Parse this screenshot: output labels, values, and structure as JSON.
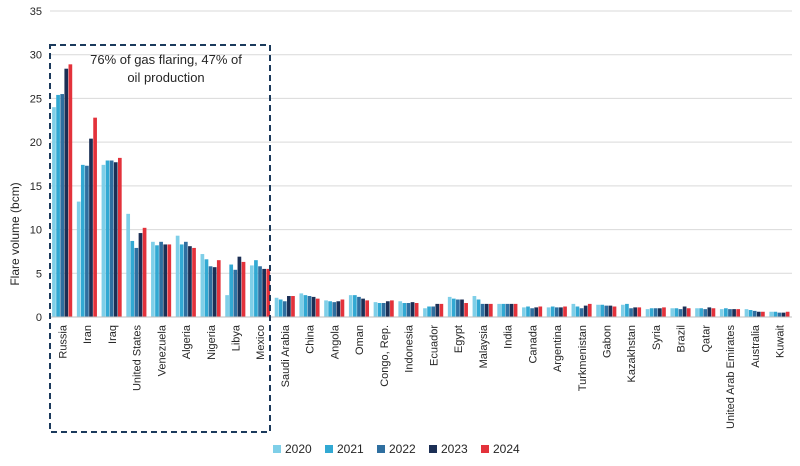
{
  "colors": {
    "2020": "#7fcfe8",
    "2021": "#32a9d3",
    "2022": "#2f6fa0",
    "2023": "#1b2f55",
    "2024": "#e3323b",
    "gridline": "#d9d9d9",
    "highlight_box": "#1b3a5c"
  },
  "chart_data": {
    "type": "bar",
    "ylabel": "Flare volume (bcm)",
    "ylim": [
      0,
      35
    ],
    "yticks": [
      0,
      5,
      10,
      15,
      20,
      25,
      30,
      35
    ],
    "grid": true,
    "legend_position": "bottom",
    "categories": [
      "Russia",
      "Iran",
      "Iraq",
      "United States",
      "Venezuela",
      "Algeria",
      "Nigeria",
      "Libya",
      "Mexico",
      "Saudi Arabia",
      "China",
      "Angola",
      "Oman",
      "Congo, Rep.",
      "Indonesia",
      "Ecuador",
      "Egypt",
      "Malaysia",
      "India",
      "Canada",
      "Argentina",
      "Turkmenistan",
      "Gabon",
      "Kazakhstan",
      "Syria",
      "Brazil",
      "Qatar",
      "United Arab Emirates",
      "Australia",
      "Kuwait"
    ],
    "series": [
      {
        "name": "2020",
        "values": [
          24.0,
          13.2,
          17.4,
          11.8,
          8.6,
          9.3,
          7.2,
          2.5,
          5.9,
          2.2,
          2.7,
          1.9,
          2.5,
          1.7,
          1.8,
          1.0,
          2.3,
          2.4,
          1.5,
          1.1,
          1.1,
          1.5,
          1.4,
          1.4,
          0.9,
          1.0,
          1.0,
          0.9,
          0.9,
          0.6
        ]
      },
      {
        "name": "2021",
        "values": [
          25.4,
          17.4,
          17.9,
          8.7,
          8.2,
          8.3,
          6.6,
          6.0,
          6.5,
          2.0,
          2.5,
          1.8,
          2.5,
          1.6,
          1.6,
          1.2,
          2.1,
          2.0,
          1.5,
          1.2,
          1.2,
          1.2,
          1.4,
          1.5,
          1.0,
          1.0,
          1.0,
          1.0,
          0.8,
          0.6
        ]
      },
      {
        "name": "2022",
        "values": [
          25.5,
          17.3,
          17.9,
          7.9,
          8.6,
          8.6,
          5.8,
          5.4,
          5.8,
          1.8,
          2.4,
          1.7,
          2.3,
          1.6,
          1.6,
          1.2,
          2.0,
          1.5,
          1.5,
          1.0,
          1.1,
          1.0,
          1.3,
          1.0,
          1.0,
          0.9,
          0.9,
          0.9,
          0.7,
          0.5
        ]
      },
      {
        "name": "2023",
        "values": [
          28.4,
          20.4,
          17.7,
          9.6,
          8.3,
          8.1,
          5.7,
          6.9,
          5.5,
          2.4,
          2.3,
          1.8,
          2.1,
          1.8,
          1.7,
          1.5,
          2.0,
          1.5,
          1.5,
          1.1,
          1.1,
          1.3,
          1.3,
          1.1,
          1.0,
          1.2,
          1.1,
          0.9,
          0.6,
          0.5
        ]
      },
      {
        "name": "2024",
        "values": [
          28.9,
          22.8,
          18.2,
          10.2,
          8.3,
          7.9,
          6.5,
          6.3,
          5.5,
          2.4,
          2.1,
          2.0,
          1.9,
          1.9,
          1.6,
          1.5,
          1.6,
          1.5,
          1.5,
          1.2,
          1.2,
          1.5,
          1.2,
          1.1,
          1.1,
          1.0,
          1.0,
          0.9,
          0.6,
          0.6
        ]
      }
    ],
    "annotation": {
      "text_line1": "76% of gas flaring, 47% of",
      "text_line2": "oil production"
    }
  }
}
